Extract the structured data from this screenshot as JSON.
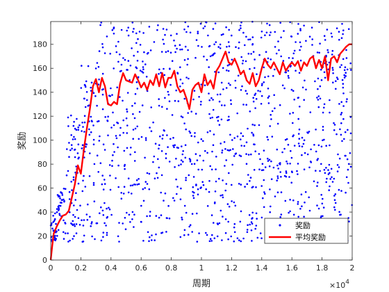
{
  "chart_data": {
    "type": "scatter",
    "xlabel": "周期",
    "ylabel": "奖励",
    "x_exponent": "×10",
    "x_exponent_power": "4",
    "xlim": [
      0,
      20000
    ],
    "ylim": [
      0,
      199
    ],
    "xticks": [
      0,
      2000,
      4000,
      6000,
      8000,
      10000,
      12000,
      14000,
      16000,
      18000,
      20000
    ],
    "xtick_labels": [
      "0",
      "0.2",
      "0.4",
      "0.6",
      "0.8",
      "1",
      "1.2",
      "1.4",
      "1.6",
      "1.8",
      "2"
    ],
    "yticks": [
      0,
      20,
      40,
      60,
      80,
      100,
      120,
      140,
      160,
      180
    ],
    "ytick_labels": [
      "0",
      "20",
      "40",
      "60",
      "80",
      "100",
      "120",
      "140",
      "160",
      "180"
    ],
    "grid": false,
    "legend_position": "bottom-right",
    "series": [
      {
        "name": "奖励",
        "kind": "scatter",
        "color": "#0000ff",
        "note": "Dense point cloud: early episodes (0–2000) concentrated in 15–80, later episodes spread roughly uniformly between 15 and 199.",
        "points": []
      },
      {
        "name": "平均奖励",
        "kind": "line",
        "color": "#ff0000",
        "x": [
          0,
          100,
          200,
          400,
          600,
          800,
          1000,
          1200,
          1400,
          1600,
          1800,
          2000,
          2200,
          2400,
          2600,
          2800,
          3000,
          3200,
          3400,
          3600,
          3800,
          4000,
          4200,
          4400,
          4600,
          4800,
          5000,
          5200,
          5400,
          5600,
          5800,
          6000,
          6200,
          6400,
          6600,
          6800,
          7000,
          7200,
          7400,
          7600,
          7800,
          8000,
          8200,
          8400,
          8600,
          8800,
          9000,
          9200,
          9400,
          9600,
          9800,
          10000,
          10200,
          10400,
          10600,
          10800,
          11000,
          11200,
          11400,
          11600,
          11800,
          12000,
          12200,
          12400,
          12600,
          12800,
          13000,
          13200,
          13400,
          13600,
          13800,
          14000,
          14200,
          14400,
          14600,
          14800,
          15000,
          15200,
          15400,
          15600,
          15800,
          16000,
          16200,
          16400,
          16600,
          16800,
          17000,
          17200,
          17400,
          17600,
          17800,
          18000,
          18200,
          18400,
          18600,
          18800,
          19000,
          19200,
          19400,
          19600,
          19800,
          20000
        ],
        "y": [
          0,
          12,
          22,
          28,
          33,
          37,
          38,
          41,
          52,
          63,
          79,
          72,
          92,
          110,
          126,
          145,
          151,
          140,
          152,
          145,
          130,
          129,
          132,
          130,
          147,
          156,
          150,
          149,
          148,
          155,
          150,
          144,
          148,
          142,
          150,
          146,
          155,
          145,
          156,
          144,
          152,
          152,
          158,
          145,
          140,
          142,
          135,
          126,
          142,
          146,
          148,
          140,
          155,
          146,
          150,
          143,
          158,
          162,
          168,
          174,
          165,
          163,
          168,
          162,
          155,
          158,
          150,
          147,
          156,
          145,
          150,
          160,
          168,
          163,
          160,
          165,
          160,
          155,
          165,
          158,
          162,
          165,
          162,
          166,
          158,
          165,
          162,
          168,
          170,
          160,
          167,
          160,
          170,
          150,
          168,
          170,
          165,
          172,
          175,
          178,
          180,
          180
        ]
      }
    ]
  }
}
